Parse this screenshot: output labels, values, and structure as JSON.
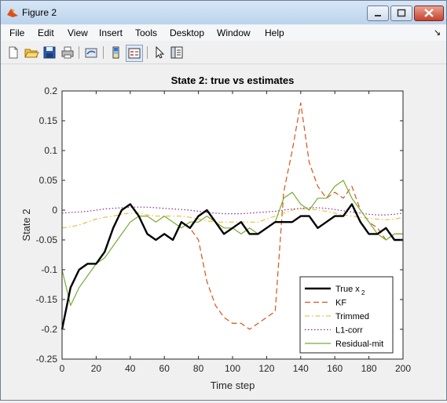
{
  "window": {
    "title": "Figure 2"
  },
  "menu": [
    "File",
    "Edit",
    "View",
    "Insert",
    "Tools",
    "Desktop",
    "Window",
    "Help"
  ],
  "menu_overflow_icon": "menu-arrow-icon",
  "toolbar_icons": [
    "new-figure-icon",
    "open-file-icon",
    "save-icon",
    "print-icon",
    "link-plot-icon",
    "insert-colorbar-icon",
    "insert-legend-icon",
    "pointer-icon",
    "property-editor-icon"
  ],
  "chart_data": {
    "type": "line",
    "title": "State 2: true vs estimates",
    "xlabel": "Time step",
    "ylabel": "State 2",
    "xlim": [
      0,
      200
    ],
    "ylim": [
      -0.25,
      0.2
    ],
    "xticks": [
      0,
      20,
      40,
      60,
      80,
      100,
      120,
      140,
      160,
      180,
      200
    ],
    "yticks": [
      "0.2",
      "0.15",
      "0.1",
      "0.05",
      "0",
      "-0.05",
      "-0.1",
      "-0.15",
      "-0.2",
      "-0.25"
    ],
    "grid": false,
    "legend_position": "bottom-right",
    "x": [
      0,
      5,
      10,
      15,
      20,
      25,
      30,
      35,
      40,
      45,
      50,
      55,
      60,
      65,
      70,
      75,
      80,
      85,
      90,
      95,
      100,
      105,
      110,
      115,
      120,
      125,
      130,
      135,
      140,
      145,
      150,
      155,
      160,
      165,
      170,
      175,
      180,
      185,
      190,
      195,
      200
    ],
    "series": [
      {
        "name": "True x2",
        "legend_label": "True x",
        "legend_subscript": "2",
        "color": "#000000",
        "style": "solid",
        "width": 2.4,
        "values": [
          -0.2,
          -0.13,
          -0.1,
          -0.09,
          -0.09,
          -0.07,
          -0.03,
          0.0,
          0.01,
          -0.01,
          -0.04,
          -0.05,
          -0.04,
          -0.05,
          -0.02,
          -0.03,
          -0.01,
          0.0,
          -0.02,
          -0.04,
          -0.03,
          -0.02,
          -0.04,
          -0.04,
          -0.03,
          -0.02,
          -0.02,
          -0.02,
          -0.01,
          -0.01,
          -0.03,
          -0.02,
          -0.01,
          -0.01,
          0.01,
          -0.02,
          -0.04,
          -0.04,
          -0.03,
          -0.05,
          -0.05
        ]
      },
      {
        "name": "KF",
        "color": "#d95319",
        "style": "dash",
        "width": 1.2,
        "values": [
          -0.2,
          -0.13,
          -0.1,
          -0.09,
          -0.09,
          -0.07,
          -0.03,
          0.0,
          0.01,
          -0.01,
          -0.04,
          -0.05,
          -0.04,
          -0.05,
          -0.02,
          -0.03,
          -0.05,
          -0.12,
          -0.16,
          -0.18,
          -0.19,
          -0.19,
          -0.2,
          -0.19,
          -0.18,
          -0.17,
          0.03,
          0.1,
          0.18,
          0.08,
          0.04,
          0.02,
          0.03,
          0.02,
          0.04,
          0.0,
          -0.02,
          -0.03,
          -0.05,
          -0.04,
          -0.04
        ]
      },
      {
        "name": "Trimmed",
        "color": "#edb120",
        "style": "dashdot",
        "width": 1.0,
        "values": [
          -0.03,
          -0.028,
          -0.025,
          -0.02,
          -0.015,
          -0.012,
          -0.01,
          -0.007,
          -0.005,
          -0.005,
          -0.008,
          -0.01,
          -0.01,
          -0.01,
          -0.01,
          -0.012,
          -0.015,
          -0.018,
          -0.02,
          -0.02,
          -0.02,
          -0.02,
          -0.02,
          -0.02,
          -0.015,
          -0.01,
          -0.005,
          0.0,
          0.002,
          0.002,
          0.0,
          -0.002,
          -0.005,
          -0.008,
          -0.01,
          -0.012,
          -0.014,
          -0.015,
          -0.016,
          -0.015,
          -0.012
        ]
      },
      {
        "name": "L1-corr",
        "color": "#7e2f8e",
        "style": "dot",
        "width": 1.2,
        "values": [
          -0.005,
          -0.004,
          -0.003,
          -0.002,
          0.0,
          0.002,
          0.003,
          0.004,
          0.005,
          0.005,
          0.005,
          0.004,
          0.003,
          0.002,
          0.001,
          0.0,
          -0.002,
          -0.004,
          -0.005,
          -0.006,
          -0.006,
          -0.006,
          -0.005,
          -0.004,
          -0.003,
          -0.002,
          0.0,
          0.002,
          0.003,
          0.004,
          0.004,
          0.003,
          0.001,
          -0.001,
          -0.003,
          -0.005,
          -0.007,
          -0.008,
          -0.008,
          -0.007,
          -0.005
        ]
      },
      {
        "name": "Residual-mit",
        "color": "#77ac30",
        "style": "solid",
        "width": 1.2,
        "values": [
          -0.1,
          -0.16,
          -0.13,
          -0.11,
          -0.09,
          -0.08,
          -0.06,
          -0.04,
          -0.02,
          -0.01,
          -0.01,
          -0.02,
          -0.01,
          -0.02,
          -0.03,
          -0.02,
          -0.02,
          -0.01,
          -0.02,
          -0.03,
          -0.03,
          -0.04,
          -0.03,
          -0.04,
          -0.03,
          -0.02,
          0.02,
          0.03,
          0.01,
          0.0,
          0.02,
          0.02,
          0.04,
          0.05,
          0.02,
          0.0,
          -0.02,
          -0.04,
          -0.05,
          -0.04,
          -0.04
        ]
      }
    ]
  }
}
